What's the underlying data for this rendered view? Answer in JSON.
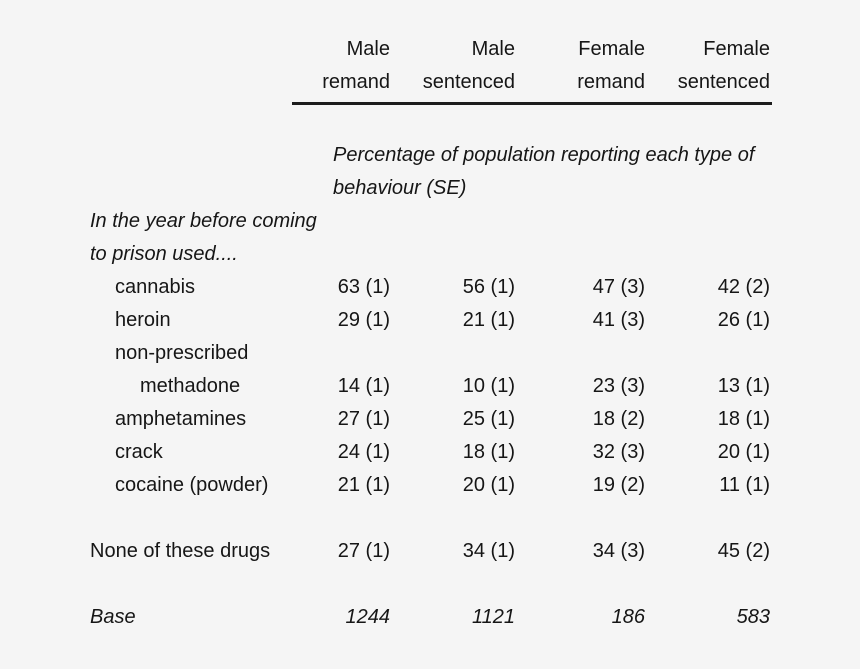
{
  "page": {
    "background_color": "#f5f5f5",
    "text_color": "#161616",
    "rule_color": "#1c1c1c"
  },
  "table": {
    "column_headers": [
      {
        "line1": "Male",
        "line2": "remand"
      },
      {
        "line1": "Male",
        "line2": "sentenced"
      },
      {
        "line1": "Female",
        "line2": "remand"
      },
      {
        "line1": "Female",
        "line2": "sentenced"
      }
    ],
    "subtitle": {
      "line1": "Percentage of population reporting each type of",
      "line2": "behaviour (SE)"
    },
    "section_heading": {
      "line1": "In the year before coming",
      "line2": "to prison used...."
    },
    "rows": [
      {
        "label": "cannabis",
        "values": [
          "63 (1)",
          "56 (1)",
          "47 (3)",
          "42 (2)"
        ]
      },
      {
        "label": "heroin",
        "values": [
          "29 (1)",
          "21 (1)",
          "41 (3)",
          "26 (1)"
        ]
      },
      {
        "label": "non-prescribed",
        "values": [
          "",
          "",
          "",
          ""
        ]
      },
      {
        "label": "methadone",
        "values": [
          "14 (1)",
          "10 (1)",
          "23 (3)",
          "13 (1)"
        ]
      },
      {
        "label": "amphetamines",
        "values": [
          "27 (1)",
          "25 (1)",
          "18 (2)",
          "18 (1)"
        ]
      },
      {
        "label": "crack",
        "values": [
          "24 (1)",
          "18 (1)",
          "32 (3)",
          "20 (1)"
        ]
      },
      {
        "label": "cocaine (powder)",
        "values": [
          "21 (1)",
          "20 (1)",
          "19 (2)",
          "11 (1)"
        ]
      },
      {
        "label": "None of these drugs",
        "values": [
          "27 (1)",
          "34 (1)",
          "34 (3)",
          "45 (2)"
        ]
      },
      {
        "label": "Base",
        "values": [
          "1244",
          "1121",
          "186",
          "583"
        ]
      }
    ]
  }
}
